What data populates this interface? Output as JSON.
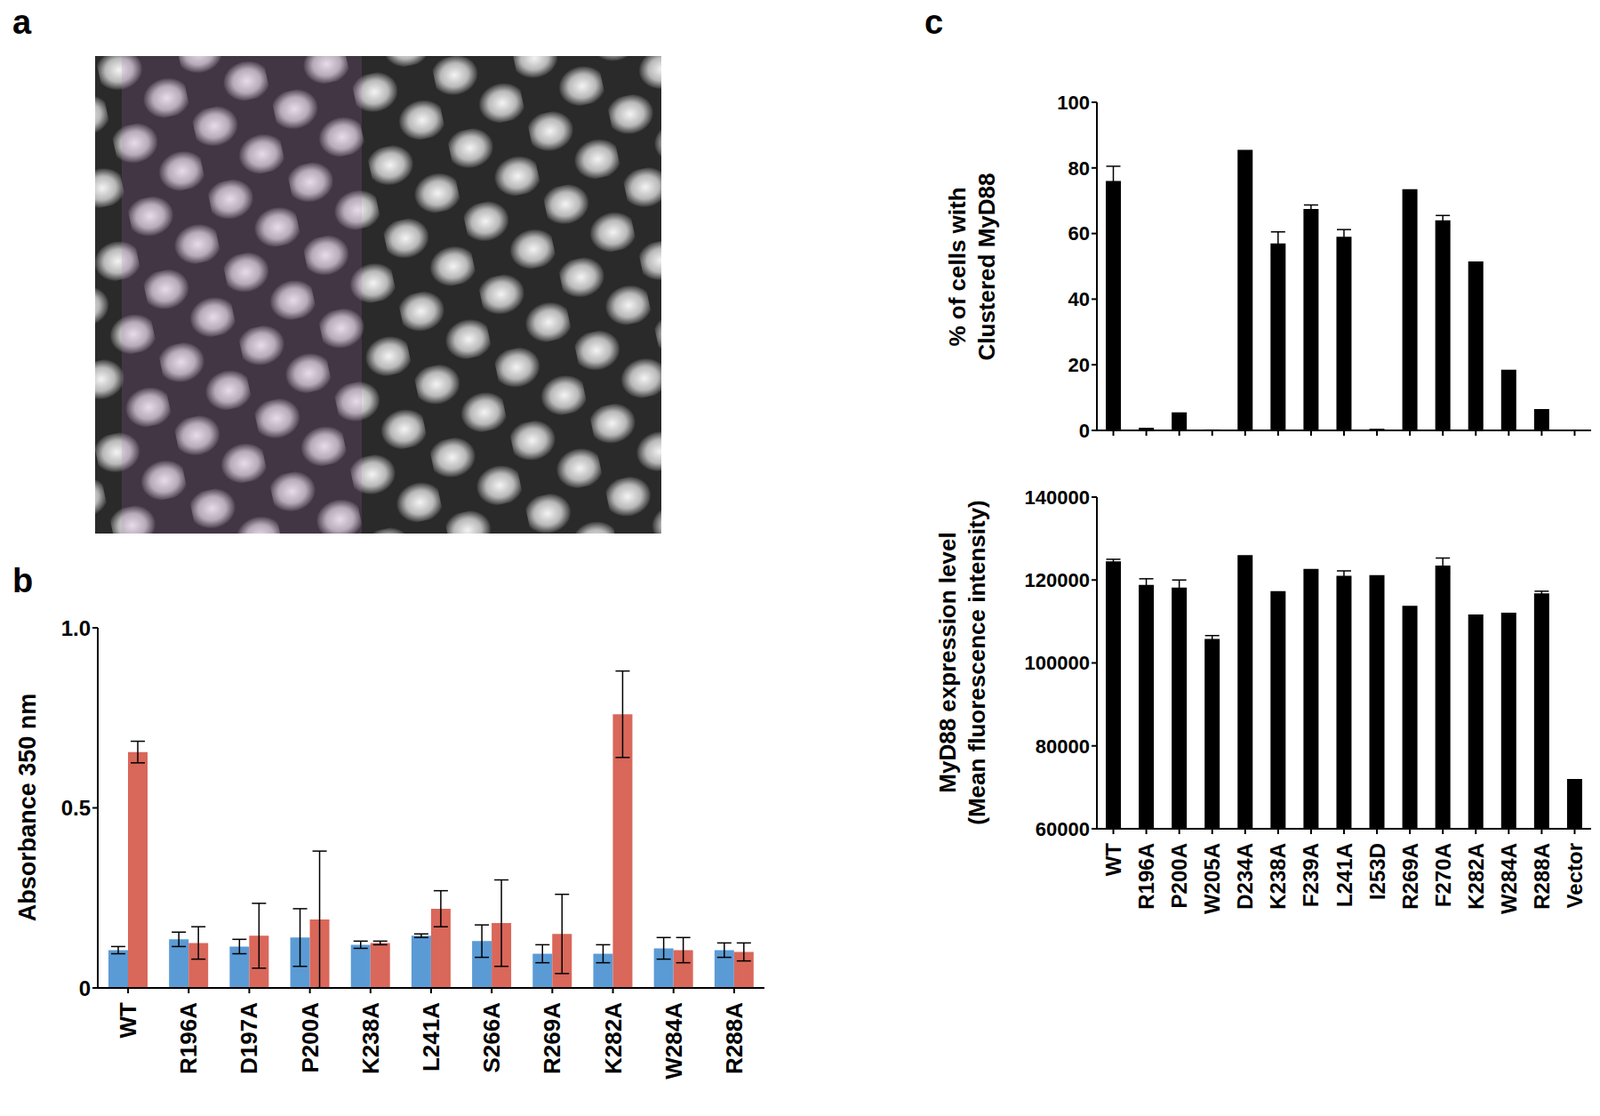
{
  "image": {
    "panel": "a"
  },
  "chart_data": [
    {
      "panel": "b",
      "type": "bar",
      "y_label": "Absorbance 350 nm",
      "categories": [
        "WT",
        "R196A",
        "D197A",
        "P200A",
        "K238A",
        "L241A",
        "S266A",
        "R269A",
        "K282A",
        "W284A",
        "R288A"
      ],
      "series": [
        {
          "color": "#5b9bd5",
          "values": [
            0.105,
            0.135,
            0.115,
            0.14,
            0.12,
            0.145,
            0.13,
            0.095,
            0.095,
            0.11,
            0.105
          ],
          "errors": [
            0.01,
            0.02,
            0.02,
            0.08,
            0.01,
            0.005,
            0.045,
            0.025,
            0.025,
            0.03,
            0.02
          ]
        },
        {
          "color": "#d9675a",
          "values": [
            0.655,
            0.125,
            0.145,
            0.19,
            0.125,
            0.22,
            0.18,
            0.15,
            0.76,
            0.105,
            0.1
          ],
          "errors": [
            0.03,
            0.045,
            0.09,
            0.19,
            0.005,
            0.05,
            0.12,
            0.11,
            0.12,
            0.035,
            0.025
          ]
        }
      ],
      "ylim": [
        0,
        1
      ],
      "yticks": [
        0,
        0.5,
        {
          "value": 1,
          "label": "1.0"
        }
      ]
    },
    {
      "panel": "c",
      "type": "bar",
      "y_label": "% of cells with\nClustered MyD88",
      "tick_labels": "y",
      "categories": [
        "WT",
        "R196A",
        "P200A",
        "W205A",
        "D234A",
        "K238A",
        "F239A",
        "L241A",
        "I253D",
        "R269A",
        "F270A",
        "K282A",
        "W284A",
        "R288A",
        "Vector"
      ],
      "series": [
        {
          "color": "#000000",
          "values": [
            76,
            0.8,
            5.5,
            0.3,
            85.5,
            57,
            67.5,
            59,
            0.5,
            73.5,
            64,
            51.5,
            18.5,
            6.5,
            0
          ],
          "errors": [
            4.5,
            0,
            0,
            0,
            0,
            3.5,
            1.2,
            2.2,
            0,
            0,
            1.5,
            0,
            0,
            0,
            0
          ]
        }
      ],
      "ylim": [
        0,
        100
      ],
      "yticks": [
        0,
        20,
        40,
        60,
        80,
        100
      ]
    },
    {
      "type": "bar",
      "y_label": "MyD88 expression level\n(Mean fluorescence intensity)",
      "categories": [
        "WT",
        "R196A",
        "P200A",
        "W205A",
        "D234A",
        "K238A",
        "F239A",
        "L241A",
        "I253D",
        "R269A",
        "F270A",
        "K282A",
        "W284A",
        "R288A",
        "Vector"
      ],
      "series": [
        {
          "color": "#000000",
          "values": [
            124500,
            118800,
            118200,
            105800,
            126000,
            117300,
            122700,
            121000,
            121200,
            113800,
            123500,
            111700,
            112100,
            116800,
            72000
          ],
          "errors": [
            500,
            1500,
            1800,
            800,
            0,
            0,
            0,
            1200,
            0,
            0,
            1800,
            0,
            0,
            500,
            0
          ]
        }
      ],
      "ylim": [
        60000,
        140000
      ],
      "yticks": [
        60000,
        80000,
        100000,
        120000,
        140000
      ]
    }
  ]
}
